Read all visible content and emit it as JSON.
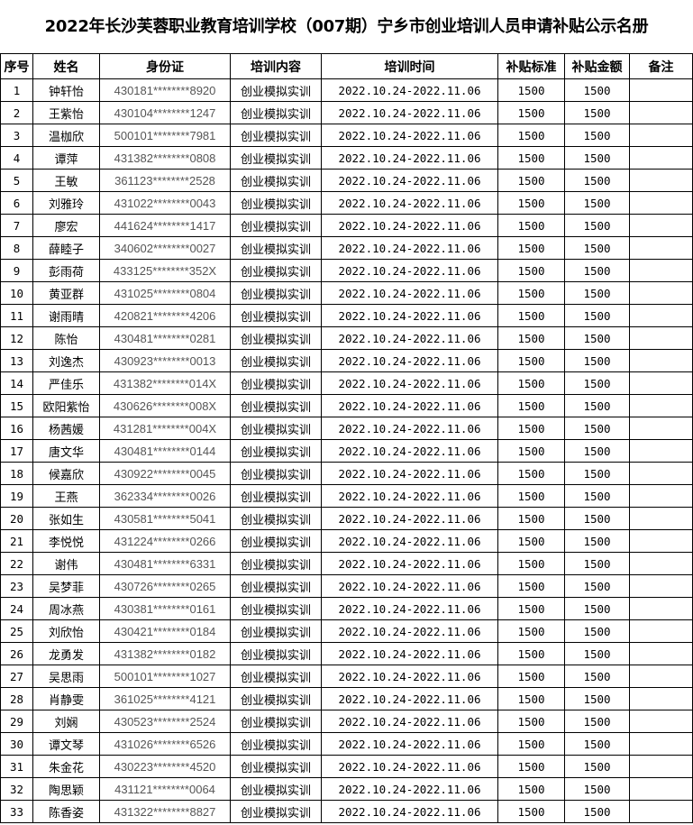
{
  "title": "2022年长沙芙蓉职业教育培训学校（007期）宁乡市创业培训人员申请补贴公示名册",
  "headers": [
    "序号",
    "姓名",
    "身份证",
    "培训内容",
    "培训时间",
    "补贴标准",
    "补贴金额",
    "备注"
  ],
  "rows": [
    [
      "1",
      "钟轩怡",
      "430181********8920"
    ],
    [
      "2",
      "王紫怡",
      "430104********1247"
    ],
    [
      "3",
      "温枷欣",
      "500101********7981"
    ],
    [
      "4",
      "谭萍",
      "431382********0808"
    ],
    [
      "5",
      "王敏",
      "361123********2528"
    ],
    [
      "6",
      "刘雅玲",
      "431022********0043"
    ],
    [
      "7",
      "廖宏",
      "441624********1417"
    ],
    [
      "8",
      "薛睦子",
      "340602********0027"
    ],
    [
      "9",
      "彭雨荷",
      "433125********352X"
    ],
    [
      "10",
      "黄亚群",
      "431025********0804"
    ],
    [
      "11",
      "谢雨晴",
      "420821********4206"
    ],
    [
      "12",
      "陈怡",
      "430481********0281"
    ],
    [
      "13",
      "刘逸杰",
      "430923********0013"
    ],
    [
      "14",
      "严佳乐",
      "431382********014X"
    ],
    [
      "15",
      "欧阳紫怡",
      "430626********008X"
    ],
    [
      "16",
      "杨茜媛",
      "431281********004X"
    ],
    [
      "17",
      "唐文华",
      "430481********0144"
    ],
    [
      "18",
      "候嘉欣",
      "430922********0045"
    ],
    [
      "19",
      "王燕",
      "362334********0026"
    ],
    [
      "20",
      "张如生",
      "430581********5041"
    ],
    [
      "21",
      "李悦悦",
      "431224********0266"
    ],
    [
      "22",
      "谢伟",
      "430481********6331"
    ],
    [
      "23",
      "吴梦菲",
      "430726********0265"
    ],
    [
      "24",
      "周冰燕",
      "430381********0161"
    ],
    [
      "25",
      "刘欣怡",
      "430421********0184"
    ],
    [
      "26",
      "龙勇发",
      "431382********0182"
    ],
    [
      "27",
      "吴思雨",
      "500101********1027"
    ],
    [
      "28",
      "肖静雯",
      "361025********4121"
    ],
    [
      "29",
      "刘娴",
      "430523********2524"
    ],
    [
      "30",
      "谭文琴",
      "431026********6526"
    ],
    [
      "31",
      "朱金花",
      "430223********4520"
    ],
    [
      "32",
      "陶思颖",
      "431121********0064"
    ],
    [
      "33",
      "陈香姿",
      "431322********8827"
    ]
  ],
  "common": {
    "content": "创业模拟实训",
    "time": "2022.10.24-2022.11.06",
    "standard": "1500",
    "amount": "1500",
    "note": ""
  }
}
